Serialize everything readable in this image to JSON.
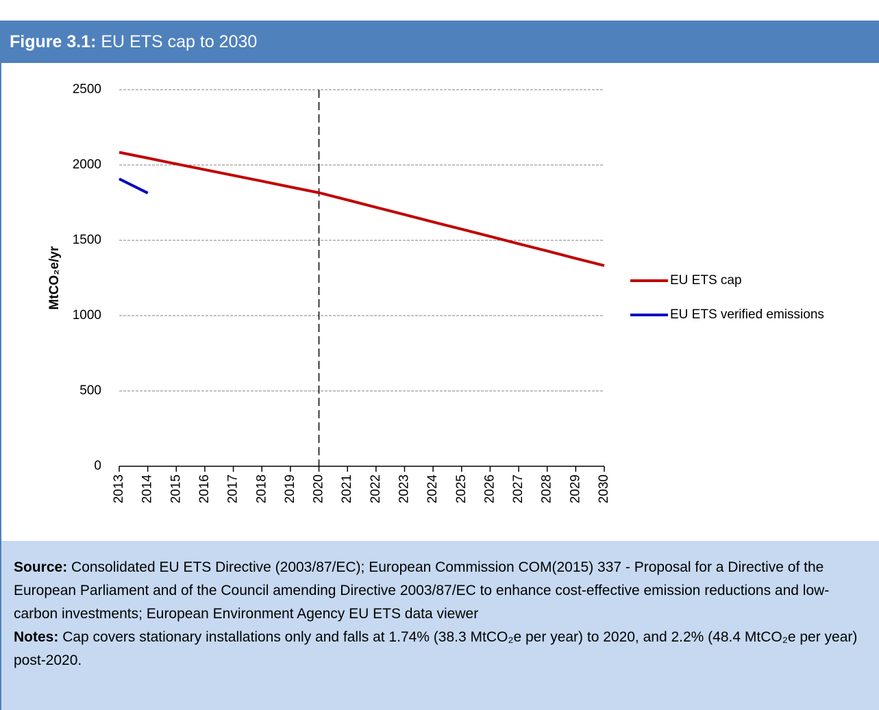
{
  "chart_data": {
    "type": "line",
    "title_label": "Figure 3.1:",
    "title": "EU ETS cap to 2030",
    "y_label": "MtCO₂e/yr",
    "categories": [
      "2013",
      "2014",
      "2015",
      "2016",
      "2017",
      "2018",
      "2019",
      "2020",
      "2021",
      "2022",
      "2023",
      "2024",
      "2025",
      "2026",
      "2027",
      "2028",
      "2029",
      "2030"
    ],
    "series": [
      {
        "name": "EU ETS cap",
        "color": "#c00000",
        "values": [
          2084,
          2046,
          2007,
          1969,
          1931,
          1893,
          1854,
          1816,
          1768,
          1719,
          1671,
          1622,
          1574,
          1526,
          1477,
          1429,
          1380,
          1332
        ]
      },
      {
        "name": "EU ETS verified emissions",
        "color": "#0000c0",
        "values": [
          1908,
          1814,
          null,
          null,
          null,
          null,
          null,
          null,
          null,
          null,
          null,
          null,
          null,
          null,
          null,
          null,
          null,
          null
        ]
      }
    ],
    "ylim": [
      0,
      2500
    ],
    "yticks": [
      0,
      500,
      1000,
      1500,
      2000,
      2500
    ],
    "grid": true,
    "vline": "2020",
    "legend": "right"
  },
  "notes": {
    "source_label": "Source:",
    "source": "Consolidated EU ETS Directive (2003/87/EC); European Commission COM(2015) 337 - Proposal for a Directive of the European Parliament and of the Council amending Directive 2003/87/EC to enhance cost-effective emission reductions and low-carbon investments; European Environment Agency EU ETS data viewer",
    "notes_label": "Notes:",
    "notes": "Cap covers stationary installations only and falls at 1.74% (38.3 MtCO₂e per year) to 2020, and 2.2% (48.4 MtCO₂e per year) post-2020."
  }
}
